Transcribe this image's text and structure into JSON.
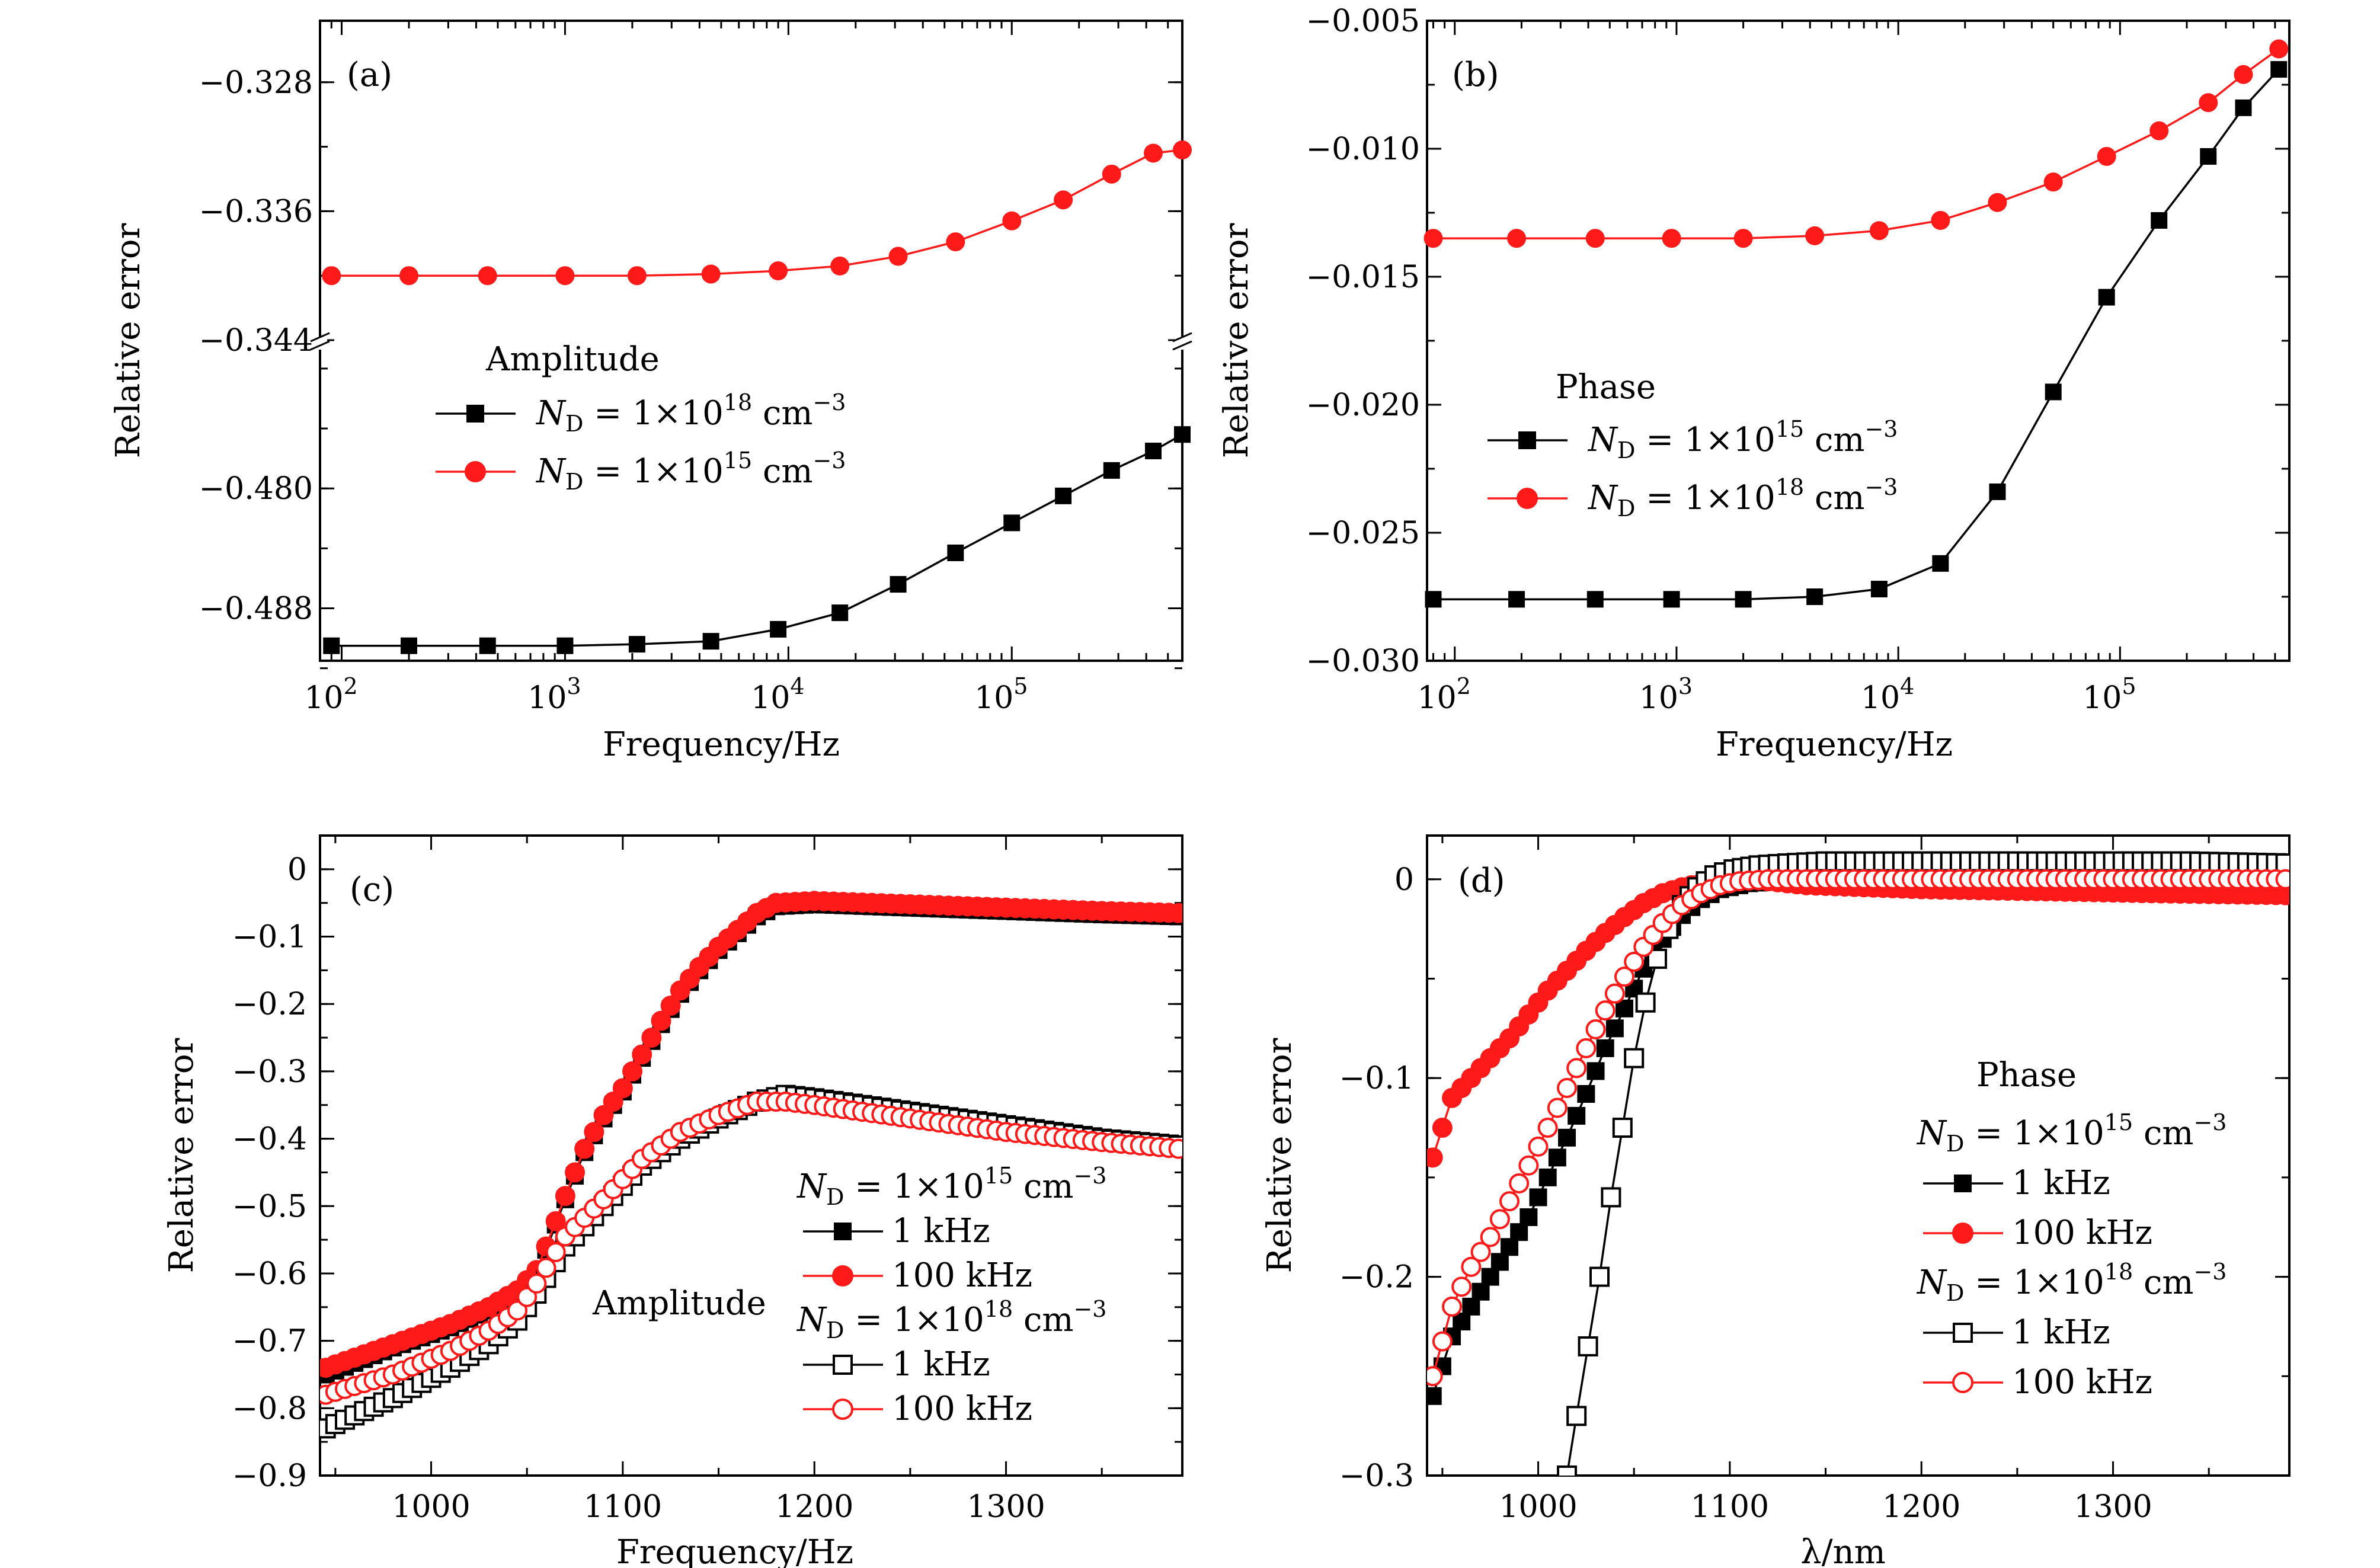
{
  "colors": {
    "black": "#000000",
    "red": "#ff1a1a",
    "background": "#ffffff"
  },
  "chart_data": [
    {
      "panel_label": "(a)",
      "type": "line",
      "x_scale": "log",
      "xlabel": "Frequency/Hz",
      "ylabel": "Relative error",
      "xlim": [
        80,
        580000
      ],
      "broken_y_axis": true,
      "ylim_upper": [
        -0.344,
        -0.324
      ],
      "ylim_lower": [
        -0.4915,
        -0.4705
      ],
      "yticks_upper": [
        -0.328,
        -0.336,
        -0.344
      ],
      "yticks_upper_labels": [
        "−0.328",
        "−0.336",
        "−0.344"
      ],
      "yticks_lower": [
        -0.48,
        -0.488
      ],
      "yticks_lower_labels": [
        "−0.480",
        "−0.488"
      ],
      "xticks": [
        100,
        1000,
        10000,
        100000
      ],
      "xtick_base": "10",
      "xtick_exponents": [
        "2",
        "3",
        "4",
        "5"
      ],
      "legend_title": "Amplitude",
      "legend": [
        {
          "nd": "N",
          "sub": "D",
          "eq": " = 1×10",
          "sup": "18",
          "unit": " cm",
          "usup": "−3"
        },
        {
          "nd": "N",
          "sub": "D",
          "eq": " = 1×10",
          "sup": "15",
          "unit": " cm",
          "usup": "−3"
        }
      ],
      "series": [
        {
          "name": "N_D = 1×10^18 cm^-3",
          "color": "#000000",
          "marker": "square-filled",
          "axis": "lower",
          "x": [
            90,
            200,
            450,
            1000,
            2100,
            4500,
            9000,
            17000,
            31000,
            56000,
            100000,
            170000,
            280000,
            430000,
            580000
          ],
          "y": [
            -0.4905,
            -0.4905,
            -0.4905,
            -0.4905,
            -0.4904,
            -0.4902,
            -0.4894,
            -0.4883,
            -0.4864,
            -0.4843,
            -0.4823,
            -0.4805,
            -0.4788,
            -0.4775,
            -0.4764
          ]
        },
        {
          "name": "N_D = 1×10^15 cm^-3",
          "color": "#ff1a1a",
          "marker": "circle-filled",
          "axis": "upper",
          "x": [
            90,
            200,
            450,
            1000,
            2100,
            4500,
            9000,
            17000,
            31000,
            56000,
            100000,
            170000,
            280000,
            430000,
            580000
          ],
          "y": [
            -0.34,
            -0.34,
            -0.34,
            -0.34,
            -0.34,
            -0.3399,
            -0.3397,
            -0.3394,
            -0.3388,
            -0.3379,
            -0.3366,
            -0.3353,
            -0.3337,
            -0.3324,
            -0.3322
          ]
        }
      ]
    },
    {
      "panel_label": "(b)",
      "type": "line",
      "x_scale": "log",
      "xlabel": "Frequency/Hz",
      "ylabel": "Relative error",
      "xlim": [
        75,
        580000
      ],
      "ylim": [
        -0.03,
        -0.005
      ],
      "yticks": [
        -0.005,
        -0.01,
        -0.015,
        -0.02,
        -0.025,
        -0.03
      ],
      "yticks_labels": [
        "−0.005",
        "−0.010",
        "−0.015",
        "−0.020",
        "−0.025",
        "−0.030"
      ],
      "xticks": [
        100,
        1000,
        10000,
        100000
      ],
      "xtick_base": "10",
      "xtick_exponents": [
        "2",
        "3",
        "4",
        "5"
      ],
      "legend_title": "Phase",
      "legend": [
        {
          "nd": "N",
          "sub": "D",
          "eq": " = 1×10",
          "sup": "15",
          "unit": " cm",
          "usup": "−3"
        },
        {
          "nd": "N",
          "sub": "D",
          "eq": " = 1×10",
          "sup": "18",
          "unit": " cm",
          "usup": "−3"
        }
      ],
      "series": [
        {
          "name": "N_D = 1×10^15 cm^-3",
          "color": "#000000",
          "marker": "square-filled",
          "x": [
            80,
            190,
            430,
            950,
            2000,
            4200,
            8200,
            15500,
            28000,
            50000,
            87000,
            150000,
            250000,
            360000,
            520000
          ],
          "y": [
            -0.0276,
            -0.0276,
            -0.0276,
            -0.0276,
            -0.0276,
            -0.0275,
            -0.0272,
            -0.0262,
            -0.0234,
            -0.0195,
            -0.0158,
            -0.0128,
            -0.0103,
            -0.0084,
            -0.0069
          ]
        },
        {
          "name": "N_D = 1×10^18 cm^-3",
          "color": "#ff1a1a",
          "marker": "circle-filled",
          "x": [
            80,
            190,
            430,
            950,
            2000,
            4200,
            8200,
            15500,
            28000,
            50000,
            87000,
            150000,
            250000,
            360000,
            520000
          ],
          "y": [
            -0.0135,
            -0.0135,
            -0.0135,
            -0.0135,
            -0.0135,
            -0.0134,
            -0.0132,
            -0.0128,
            -0.0121,
            -0.0113,
            -0.0103,
            -0.0093,
            -0.0082,
            -0.0071,
            -0.0061
          ]
        }
      ]
    },
    {
      "panel_label": "(c)",
      "type": "line",
      "xlabel": "Frequency/Hz",
      "ylabel": "Relative error",
      "xlim": [
        942,
        1392
      ],
      "ylim": [
        -0.9,
        0.05
      ],
      "yticks": [
        0,
        -0.1,
        -0.2,
        -0.3,
        -0.4,
        -0.5,
        -0.6,
        -0.7,
        -0.8,
        -0.9
      ],
      "yticks_labels": [
        "0",
        "−0.1",
        "−0.2",
        "−0.3",
        "−0.4",
        "−0.5",
        "−0.6",
        "−0.7",
        "−0.8",
        "−0.9"
      ],
      "xticks": [
        1000,
        1100,
        1200,
        1300
      ],
      "xticks_labels": [
        "1000",
        "1100",
        "1200",
        "1300"
      ],
      "annotation": "Amplitude",
      "legend": [
        {
          "kind": "title",
          "nd": "N",
          "sub": "D",
          "eq": " = 1×10",
          "sup": "15",
          "unit": " cm",
          "usup": "−3"
        },
        {
          "kind": "entry",
          "label": "1 kHz",
          "color": "#000000",
          "marker": "square-filled"
        },
        {
          "kind": "entry",
          "label": "100 kHz",
          "color": "#ff1a1a",
          "marker": "circle-filled"
        },
        {
          "kind": "title",
          "nd": "N",
          "sub": "D",
          "eq": " = 1×10",
          "sup": "18",
          "unit": " cm",
          "usup": "−3"
        },
        {
          "kind": "entry",
          "label": "1 kHz",
          "color": "#000000",
          "marker": "square-open"
        },
        {
          "kind": "entry",
          "label": "100 kHz",
          "color": "#ff1a1a",
          "marker": "circle-open"
        }
      ],
      "series": [
        {
          "name": "1e15 1 kHz",
          "color": "#000000",
          "marker": "square-filled",
          "x": [
            945,
            980,
            1010,
            1030,
            1045,
            1055,
            1060,
            1070,
            1080,
            1090,
            1100,
            1110,
            1120,
            1130,
            1140,
            1150,
            1160,
            1170,
            1180,
            1200,
            1250,
            1300,
            1350,
            1390
          ],
          "y": [
            -0.75,
            -0.71,
            -0.68,
            -0.655,
            -0.63,
            -0.6,
            -0.565,
            -0.49,
            -0.42,
            -0.37,
            -0.33,
            -0.28,
            -0.23,
            -0.185,
            -0.15,
            -0.12,
            -0.095,
            -0.07,
            -0.055,
            -0.052,
            -0.057,
            -0.062,
            -0.067,
            -0.07
          ]
        },
        {
          "name": "1e15 100 kHz",
          "color": "#ff1a1a",
          "marker": "circle-filled",
          "x": [
            945,
            980,
            1010,
            1030,
            1045,
            1055,
            1060,
            1070,
            1080,
            1090,
            1100,
            1110,
            1120,
            1130,
            1140,
            1150,
            1160,
            1170,
            1180,
            1200,
            1250,
            1300,
            1350,
            1390
          ],
          "y": [
            -0.74,
            -0.705,
            -0.675,
            -0.65,
            -0.625,
            -0.595,
            -0.56,
            -0.485,
            -0.415,
            -0.365,
            -0.325,
            -0.275,
            -0.225,
            -0.18,
            -0.145,
            -0.115,
            -0.09,
            -0.065,
            -0.05,
            -0.047,
            -0.052,
            -0.057,
            -0.062,
            -0.065
          ]
        },
        {
          "name": "1e18 1 kHz",
          "color": "#000000",
          "marker": "square-open",
          "x": [
            945,
            980,
            1010,
            1030,
            1045,
            1055,
            1070,
            1090,
            1110,
            1130,
            1150,
            1170,
            1185,
            1200,
            1250,
            1300,
            1350,
            1390
          ],
          "y": [
            -0.83,
            -0.785,
            -0.74,
            -0.705,
            -0.67,
            -0.63,
            -0.56,
            -0.5,
            -0.44,
            -0.4,
            -0.37,
            -0.345,
            -0.335,
            -0.34,
            -0.36,
            -0.38,
            -0.4,
            -0.41
          ]
        },
        {
          "name": "1e18 100 kHz",
          "color": "#ff1a1a",
          "marker": "circle-open",
          "x": [
            945,
            980,
            1010,
            1030,
            1045,
            1055,
            1070,
            1090,
            1110,
            1130,
            1150,
            1170,
            1185,
            1200,
            1250,
            1300,
            1350,
            1390
          ],
          "y": [
            -0.78,
            -0.75,
            -0.715,
            -0.685,
            -0.655,
            -0.615,
            -0.545,
            -0.49,
            -0.43,
            -0.39,
            -0.365,
            -0.345,
            -0.345,
            -0.35,
            -0.37,
            -0.39,
            -0.405,
            -0.415
          ]
        }
      ]
    },
    {
      "panel_label": "(d)",
      "type": "line",
      "xlabel": "λ/nm",
      "ylabel": "Relative error",
      "xlim": [
        942,
        1392
      ],
      "ylim": [
        -0.3,
        0.022
      ],
      "yticks": [
        0,
        -0.1,
        -0.2,
        -0.3
      ],
      "yticks_labels": [
        "0",
        "−0.1",
        "−0.2",
        "−0.3"
      ],
      "xticks": [
        1000,
        1100,
        1200,
        1300
      ],
      "xticks_labels": [
        "1000",
        "1100",
        "1200",
        "1300"
      ],
      "legend_title": "Phase",
      "legend": [
        {
          "kind": "title",
          "nd": "N",
          "sub": "D",
          "eq": " = 1×10",
          "sup": "15",
          "unit": " cm",
          "usup": "−3"
        },
        {
          "kind": "entry",
          "label": "1 kHz",
          "color": "#000000",
          "marker": "square-filled"
        },
        {
          "kind": "entry",
          "label": "100 kHz",
          "color": "#ff1a1a",
          "marker": "circle-filled"
        },
        {
          "kind": "title",
          "nd": "N",
          "sub": "D",
          "eq": " = 1×10",
          "sup": "18",
          "unit": " cm",
          "usup": "−3"
        },
        {
          "kind": "entry",
          "label": "1 kHz",
          "color": "#000000",
          "marker": "square-open"
        },
        {
          "kind": "entry",
          "label": "100 kHz",
          "color": "#ff1a1a",
          "marker": "circle-open"
        }
      ],
      "series": [
        {
          "name": "1e15 1 kHz",
          "color": "#000000",
          "marker": "square-filled",
          "x": [
            945,
            955,
            965,
            975,
            985,
            995,
            1005,
            1015,
            1025,
            1035,
            1045,
            1055,
            1065,
            1075,
            1085,
            1095,
            1110,
            1140,
            1200,
            1260,
            1320,
            1390
          ],
          "y": [
            -0.26,
            -0.23,
            -0.215,
            -0.2,
            -0.185,
            -0.17,
            -0.15,
            -0.13,
            -0.108,
            -0.085,
            -0.065,
            -0.045,
            -0.03,
            -0.018,
            -0.01,
            -0.005,
            -0.002,
            0.0,
            0.0,
            0.0,
            0.0,
            0.0
          ]
        },
        {
          "name": "1e15 100 kHz",
          "color": "#ff1a1a",
          "marker": "circle-filled",
          "x": [
            945,
            955,
            965,
            975,
            985,
            995,
            1005,
            1015,
            1025,
            1035,
            1045,
            1055,
            1065,
            1075,
            1085,
            1095,
            1110,
            1140,
            1200,
            1260,
            1320,
            1390
          ],
          "y": [
            -0.14,
            -0.11,
            -0.1,
            -0.09,
            -0.08,
            -0.068,
            -0.056,
            -0.046,
            -0.036,
            -0.027,
            -0.019,
            -0.012,
            -0.007,
            -0.004,
            -0.002,
            -0.001,
            0.0,
            -0.003,
            -0.005,
            -0.006,
            -0.007,
            -0.008
          ]
        },
        {
          "name": "1e18 1 kHz",
          "color": "#000000",
          "marker": "square-open",
          "x": [
            1015,
            1020,
            1026,
            1032,
            1038,
            1044,
            1050,
            1056,
            1062,
            1068,
            1075,
            1083,
            1092,
            1102,
            1115,
            1130,
            1150,
            1180,
            1220,
            1260,
            1300,
            1340,
            1390
          ],
          "y": [
            -0.3,
            -0.27,
            -0.235,
            -0.2,
            -0.16,
            -0.125,
            -0.09,
            -0.062,
            -0.04,
            -0.025,
            -0.013,
            -0.004,
            0.002,
            0.005,
            0.007,
            0.008,
            0.009,
            0.009,
            0.009,
            0.009,
            0.009,
            0.009,
            0.008
          ]
        },
        {
          "name": "1e18 100 kHz",
          "color": "#ff1a1a",
          "marker": "circle-open",
          "x": [
            945,
            955,
            965,
            975,
            985,
            995,
            1005,
            1015,
            1025,
            1035,
            1045,
            1055,
            1065,
            1075,
            1085,
            1095,
            1105,
            1120,
            1140,
            1200,
            1260,
            1320,
            1390
          ],
          "y": [
            -0.25,
            -0.215,
            -0.195,
            -0.18,
            -0.162,
            -0.144,
            -0.125,
            -0.105,
            -0.085,
            -0.066,
            -0.049,
            -0.034,
            -0.022,
            -0.013,
            -0.007,
            -0.003,
            -0.001,
            0.0,
            0.0,
            0.0,
            0.0,
            0.0,
            0.0
          ]
        }
      ]
    }
  ]
}
